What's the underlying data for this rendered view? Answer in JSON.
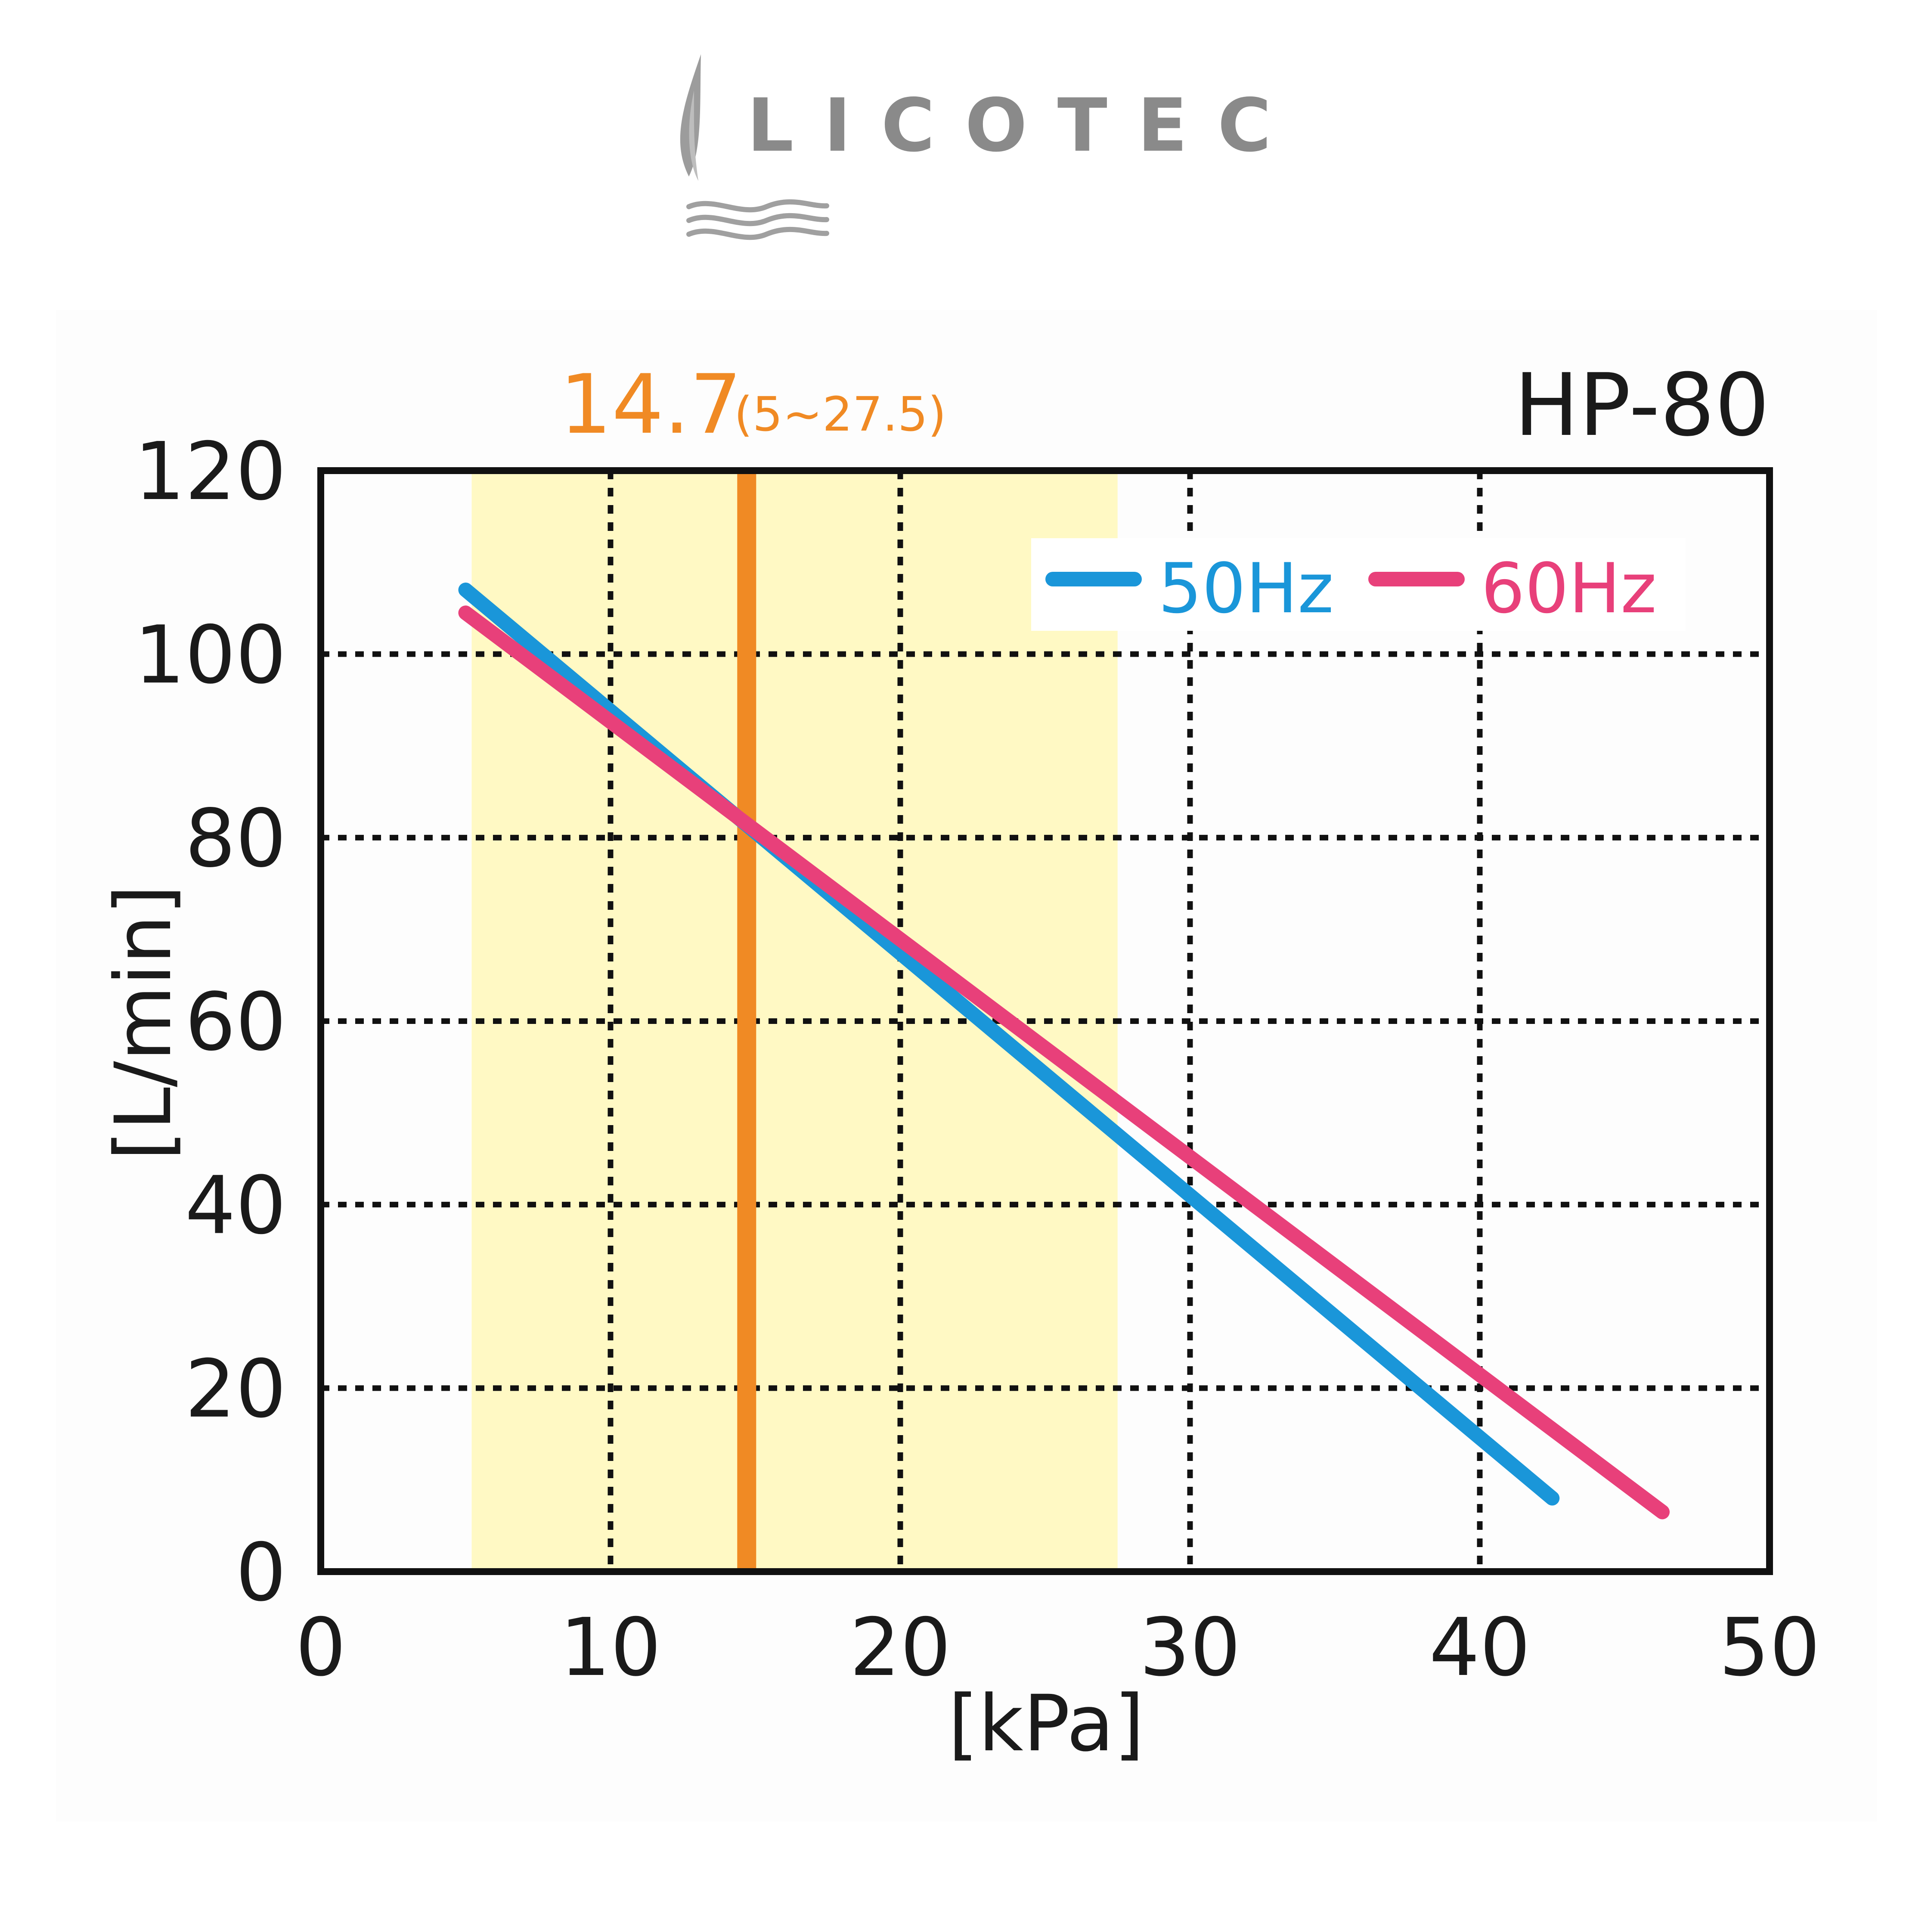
{
  "brand": {
    "name": "LICOTEC",
    "color": "#8a8a8a"
  },
  "chart_data": {
    "type": "line",
    "title": "HP-80",
    "operating_point": {
      "label": "14.7",
      "range_label": "(5~27.5)",
      "value": 14.7,
      "range": [
        5,
        27.5
      ],
      "color": "#f08a24"
    },
    "xlabel": "[kPa]",
    "ylabel": "[L/min]",
    "xlim": [
      0,
      50
    ],
    "ylim": [
      0,
      120
    ],
    "xticks": [
      0,
      10,
      20,
      30,
      40,
      50
    ],
    "yticks": [
      0,
      20,
      40,
      60,
      80,
      100,
      120
    ],
    "grid": true,
    "legend_position": "top-right",
    "highlight_band_color": "#fff9c4",
    "series": [
      {
        "name": "50Hz",
        "color": "#1a96d9",
        "x": [
          5,
          42.5
        ],
        "y": [
          107,
          8
        ]
      },
      {
        "name": "60Hz",
        "color": "#e8407a",
        "x": [
          5,
          46.3
        ],
        "y": [
          104.5,
          6.5
        ]
      }
    ]
  }
}
